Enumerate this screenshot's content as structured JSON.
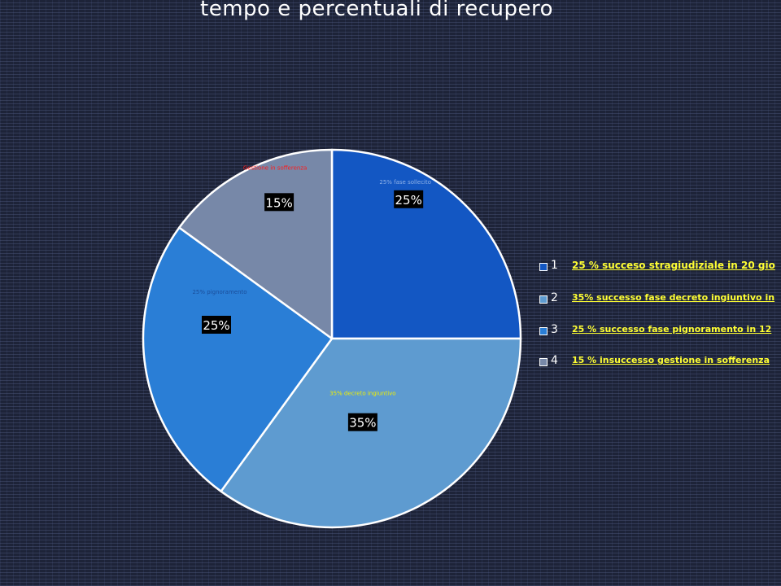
{
  "title": "tempo e percentuali di recupero",
  "chart_data": {
    "type": "pie",
    "title": "tempo e percentuali di recupero",
    "start_angle_deg": 0,
    "direction": "clockwise",
    "slices": [
      {
        "value": 25,
        "label": "25% fase sollecito",
        "pct_label": "25%",
        "color": "#1357c3",
        "label_color": "#8fb2e8"
      },
      {
        "value": 35,
        "label": "35% decreto ingiuntivo",
        "pct_label": "35%",
        "color": "#5e9bd0",
        "label_color": "#f0f000"
      },
      {
        "value": 25,
        "label": "25% pignoramento",
        "pct_label": "25%",
        "color": "#2a7ed6",
        "label_color": "#1a4d9a"
      },
      {
        "value": 15,
        "label": "Gestione in sofferenza",
        "pct_label": "15%",
        "color": "#7788a8",
        "label_color": "#ff1a1a"
      }
    ],
    "legend": {
      "position": "right",
      "items": [
        {
          "number": "1",
          "text": "25 %  succeso stragiudiziale in 20 gio",
          "marker_color": "#1357c3"
        },
        {
          "number": "2",
          "text": " 35% successo  fase decreto  ingiuntivo in",
          "marker_color": "#5e9bd0"
        },
        {
          "number": "3",
          "text": "25 % successo  fase pignoramento  in 12",
          "marker_color": "#2a7ed6"
        },
        {
          "number": "4",
          "text": "15 % insuccesso  gestione in sofferenza",
          "marker_color": "#7788a8"
        }
      ]
    }
  }
}
